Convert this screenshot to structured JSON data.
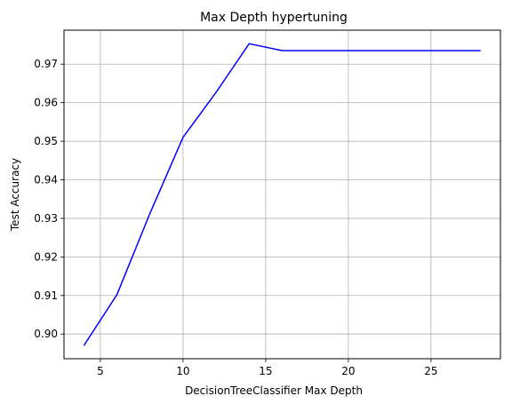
{
  "chart_data": {
    "type": "line",
    "title": "Max Depth hypertuning",
    "xlabel": "DecisionTreeClassifier Max Depth",
    "ylabel": "Test Accuracy",
    "x": [
      4,
      6,
      8,
      10,
      12,
      14,
      16,
      18,
      20,
      22,
      24,
      26,
      28
    ],
    "series": [
      {
        "values": [
          0.897,
          0.9102,
          0.9313,
          0.951,
          0.9627,
          0.9753,
          0.9735,
          0.9735,
          0.9735,
          0.9735,
          0.9735,
          0.9735,
          0.9735
        ],
        "color": "#0000ff"
      }
    ],
    "xlim": [
      2.8,
      29.2
    ],
    "ylim": [
      0.8936,
      0.9788
    ],
    "xticks": [
      5,
      10,
      15,
      20,
      25
    ],
    "yticks": [
      0.9,
      0.91,
      0.92,
      0.93,
      0.94,
      0.95,
      0.96,
      0.97
    ],
    "ytick_decimals": 2,
    "grid": true,
    "legend": "none"
  }
}
